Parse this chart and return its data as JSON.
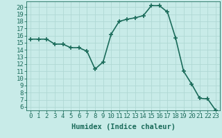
{
  "x": [
    0,
    1,
    2,
    3,
    4,
    5,
    6,
    7,
    8,
    9,
    10,
    11,
    12,
    13,
    14,
    15,
    16,
    17,
    18,
    19,
    20,
    21,
    22,
    23
  ],
  "y": [
    15.5,
    15.5,
    15.5,
    14.8,
    14.8,
    14.3,
    14.3,
    13.8,
    11.3,
    12.3,
    16.2,
    18.0,
    18.3,
    18.5,
    18.8,
    20.2,
    20.2,
    19.3,
    15.7,
    11.0,
    9.2,
    7.2,
    7.1,
    5.5
  ],
  "line_color": "#1a6b5a",
  "marker": "+",
  "markersize": 4,
  "markeredgewidth": 1.2,
  "bg_color": "#c8ebe8",
  "grid_major_color": "#b0d8d4",
  "grid_minor_color": "#c0e4e0",
  "xlabel": "Humidex (Indice chaleur)",
  "ylabel_ticks": [
    6,
    7,
    8,
    9,
    10,
    11,
    12,
    13,
    14,
    15,
    16,
    17,
    18,
    19,
    20
  ],
  "xlim": [
    -0.5,
    23.5
  ],
  "ylim": [
    5.5,
    20.8
  ],
  "tick_color": "#1a6b5a",
  "xlabel_fontsize": 7.5,
  "tick_fontsize": 6.5,
  "linewidth": 1.2
}
